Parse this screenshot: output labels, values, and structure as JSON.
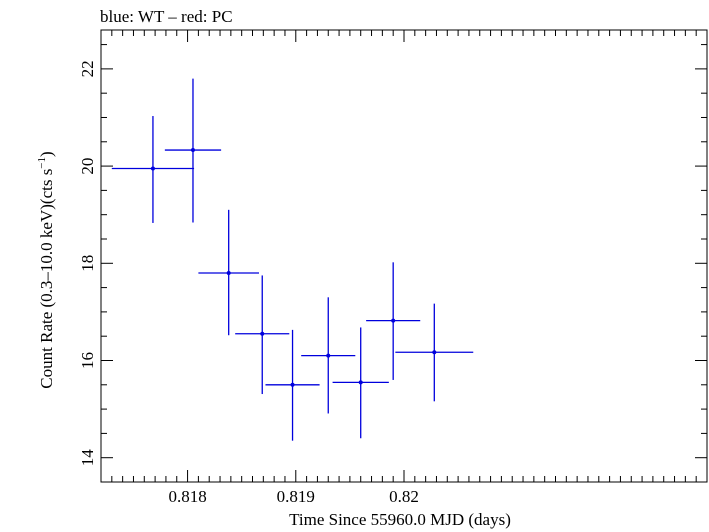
{
  "chart_data": {
    "type": "scatter",
    "title": "blue: WT – red: PC",
    "xlabel": "Time Since 55960.0 MJD (days)",
    "ylabel_main": "Count Rate (0.3–10.0 keV)(cts s",
    "ylabel_sup": "−1",
    "ylabel_tail": ")",
    "xlim": [
      0.8172,
      0.8228
    ],
    "ylim": [
      13.5,
      22.8
    ],
    "x_ticks": [
      {
        "value": 0.818,
        "label": "0.818"
      },
      {
        "value": 0.819,
        "label": "0.819"
      },
      {
        "value": 0.82,
        "label": "0.82"
      }
    ],
    "y_ticks": [
      {
        "value": 14,
        "label": "14"
      },
      {
        "value": 16,
        "label": "16"
      },
      {
        "value": 18,
        "label": "18"
      },
      {
        "value": 20,
        "label": "20"
      },
      {
        "value": 22,
        "label": "22"
      }
    ],
    "grid": false,
    "series": [
      {
        "color": "#0000dd",
        "points": [
          {
            "x": 0.81768,
            "y": 19.95,
            "xerr": 0.00038,
            "yerr_lo": 1.12,
            "yerr_hi": 1.08
          },
          {
            "x": 0.81805,
            "y": 20.33,
            "xerr": 0.00026,
            "yerr_lo": 1.49,
            "yerr_hi": 1.47
          },
          {
            "x": 0.81838,
            "y": 17.8,
            "xerr": 0.00028,
            "yerr_lo": 1.28,
            "yerr_hi": 1.3
          },
          {
            "x": 0.81869,
            "y": 16.55,
            "xerr": 0.00025,
            "yerr_lo": 1.24,
            "yerr_hi": 1.2
          },
          {
            "x": 0.81897,
            "y": 15.5,
            "xerr": 0.00025,
            "yerr_lo": 1.15,
            "yerr_hi": 1.13
          },
          {
            "x": 0.8193,
            "y": 16.1,
            "xerr": 0.00025,
            "yerr_lo": 1.19,
            "yerr_hi": 1.2
          },
          {
            "x": 0.8196,
            "y": 15.55,
            "xerr": 0.00026,
            "yerr_lo": 1.15,
            "yerr_hi": 1.13
          },
          {
            "x": 0.8199,
            "y": 16.82,
            "xerr": 0.00025,
            "yerr_lo": 1.22,
            "yerr_hi": 1.2
          },
          {
            "x": 0.82028,
            "y": 16.17,
            "xerr": 0.00036,
            "yerr_lo": 1.01,
            "yerr_hi": 1.0
          }
        ]
      }
    ]
  }
}
